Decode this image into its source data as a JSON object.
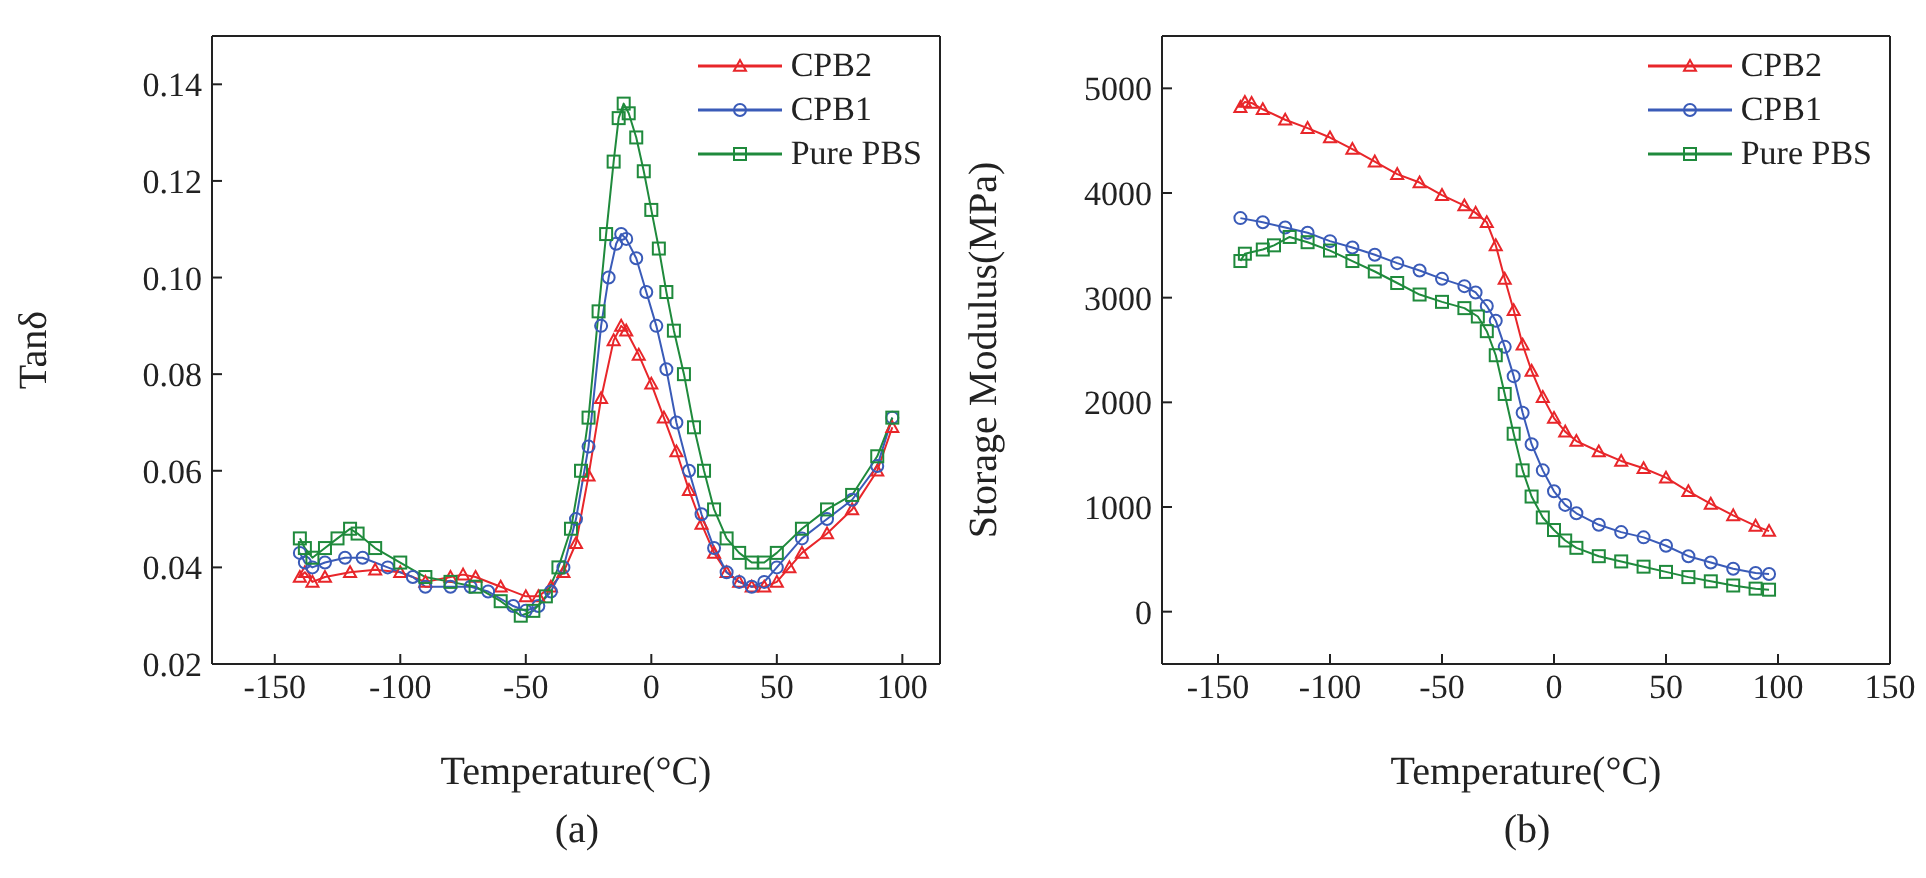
{
  "chart_data": [
    {
      "type": "line",
      "xlabel": "Temperature(°C)",
      "ylabel": "Tanδ",
      "annotations": [
        "(a)"
      ],
      "xlim": [
        -175,
        115
      ],
      "xticks": [
        -150,
        -100,
        -50,
        0,
        50,
        100
      ],
      "ylim": [
        0.02,
        0.15
      ],
      "yticks": [
        0.02,
        0.04,
        0.06,
        0.08,
        {
          "value": 0.1,
          "label": "0.10"
        },
        0.12,
        0.14
      ],
      "legend": "top right",
      "grid": false,
      "series": [
        {
          "name": "CPB2",
          "color": "#e8262a",
          "marker": "triangle",
          "x": [
            -140,
            -138,
            -135,
            -130,
            -120,
            -110,
            -100,
            -90,
            -80,
            -75,
            -70,
            -60,
            -50,
            -45,
            -40,
            -35,
            -30,
            -25,
            -20,
            -15,
            -12,
            -10,
            -5,
            0,
            5,
            10,
            15,
            20,
            25,
            30,
            35,
            40,
            45,
            50,
            55,
            60,
            70,
            80,
            90,
            96
          ],
          "values": [
            0.038,
            0.039,
            0.037,
            0.038,
            0.039,
            0.0395,
            0.039,
            0.037,
            0.038,
            0.0385,
            0.038,
            0.036,
            0.034,
            0.034,
            0.036,
            0.039,
            0.045,
            0.059,
            0.075,
            0.087,
            0.09,
            0.089,
            0.084,
            0.078,
            0.071,
            0.064,
            0.056,
            0.049,
            0.043,
            0.039,
            0.037,
            0.036,
            0.036,
            0.037,
            0.04,
            0.043,
            0.047,
            0.052,
            0.06,
            0.069
          ]
        },
        {
          "name": "CPB1",
          "color": "#3a5bb8",
          "marker": "circle",
          "x": [
            -140,
            -138,
            -135,
            -130,
            -122,
            -115,
            -105,
            -95,
            -90,
            -80,
            -72,
            -65,
            -55,
            -50,
            -45,
            -40,
            -35,
            -30,
            -25,
            -20,
            -17,
            -14,
            -12,
            -10,
            -6,
            -2,
            2,
            6,
            10,
            15,
            20,
            25,
            30,
            35,
            40,
            45,
            50,
            60,
            70,
            80,
            90,
            96
          ],
          "values": [
            0.043,
            0.041,
            0.04,
            0.041,
            0.042,
            0.042,
            0.04,
            0.038,
            0.036,
            0.036,
            0.036,
            0.035,
            0.032,
            0.031,
            0.032,
            0.035,
            0.04,
            0.05,
            0.065,
            0.09,
            0.1,
            0.107,
            0.109,
            0.108,
            0.104,
            0.097,
            0.09,
            0.081,
            0.07,
            0.06,
            0.051,
            0.044,
            0.039,
            0.037,
            0.036,
            0.037,
            0.04,
            0.046,
            0.05,
            0.054,
            0.061,
            0.071
          ]
        },
        {
          "name": "Pure PBS",
          "color": "#1f8a3c",
          "marker": "square",
          "x": [
            -140,
            -138,
            -135,
            -130,
            -125,
            -120,
            -117,
            -110,
            -100,
            -90,
            -80,
            -70,
            -60,
            -52,
            -47,
            -42,
            -37,
            -32,
            -28,
            -25,
            -21,
            -18,
            -15,
            -13,
            -11,
            -9,
            -6,
            -3,
            0,
            3,
            6,
            9,
            13,
            17,
            21,
            25,
            30,
            35,
            40,
            45,
            50,
            60,
            70,
            80,
            90,
            96
          ],
          "values": [
            0.046,
            0.044,
            0.042,
            0.044,
            0.046,
            0.048,
            0.047,
            0.044,
            0.041,
            0.038,
            0.037,
            0.036,
            0.033,
            0.03,
            0.031,
            0.034,
            0.04,
            0.048,
            0.06,
            0.071,
            0.093,
            0.109,
            0.124,
            0.133,
            0.136,
            0.134,
            0.129,
            0.122,
            0.114,
            0.106,
            0.097,
            0.089,
            0.08,
            0.069,
            0.06,
            0.052,
            0.046,
            0.043,
            0.041,
            0.041,
            0.043,
            0.048,
            0.052,
            0.055,
            0.063,
            0.071
          ]
        }
      ]
    },
    {
      "type": "line",
      "xlabel": "Temperature(°C)",
      "ylabel": "Storage Modulus(MPa)",
      "annotations": [
        "(b)"
      ],
      "xlim": [
        -175,
        150
      ],
      "xticks": [
        -150,
        -100,
        -50,
        0,
        50,
        100,
        150
      ],
      "ylim": [
        -500,
        5500
      ],
      "yticks": [
        0,
        1000,
        2000,
        3000,
        4000,
        5000
      ],
      "legend": "top right",
      "grid": false,
      "series": [
        {
          "name": "CPB2",
          "color": "#e8262a",
          "marker": "triangle",
          "x": [
            -140,
            -138,
            -135,
            -130,
            -120,
            -110,
            -100,
            -90,
            -80,
            -70,
            -60,
            -50,
            -40,
            -35,
            -30,
            -26,
            -22,
            -18,
            -14,
            -10,
            -5,
            0,
            5,
            10,
            20,
            30,
            40,
            50,
            60,
            70,
            80,
            90,
            96
          ],
          "values": [
            4820,
            4870,
            4860,
            4800,
            4700,
            4620,
            4530,
            4420,
            4300,
            4180,
            4100,
            3980,
            3880,
            3810,
            3720,
            3500,
            3180,
            2880,
            2550,
            2300,
            2050,
            1850,
            1720,
            1630,
            1530,
            1440,
            1370,
            1280,
            1150,
            1030,
            920,
            820,
            770
          ]
        },
        {
          "name": "CPB1",
          "color": "#3a5bb8",
          "marker": "circle",
          "x": [
            -140,
            -130,
            -120,
            -110,
            -100,
            -90,
            -80,
            -70,
            -60,
            -50,
            -40,
            -35,
            -30,
            -26,
            -22,
            -18,
            -14,
            -10,
            -5,
            0,
            5,
            10,
            20,
            30,
            40,
            50,
            60,
            70,
            80,
            90,
            96
          ],
          "values": [
            3760,
            3720,
            3670,
            3620,
            3540,
            3480,
            3410,
            3330,
            3260,
            3180,
            3110,
            3050,
            2920,
            2780,
            2530,
            2250,
            1900,
            1600,
            1350,
            1150,
            1020,
            940,
            830,
            760,
            710,
            630,
            530,
            470,
            410,
            370,
            360
          ]
        },
        {
          "name": "Pure PBS",
          "color": "#1f8a3c",
          "marker": "square",
          "x": [
            -140,
            -138,
            -130,
            -125,
            -118,
            -110,
            -100,
            -90,
            -80,
            -70,
            -60,
            -50,
            -40,
            -34,
            -30,
            -26,
            -22,
            -18,
            -14,
            -10,
            -5,
            0,
            5,
            10,
            20,
            30,
            40,
            50,
            60,
            70,
            80,
            90,
            96
          ],
          "values": [
            3350,
            3420,
            3460,
            3500,
            3580,
            3530,
            3450,
            3350,
            3250,
            3140,
            3030,
            2960,
            2900,
            2820,
            2680,
            2450,
            2080,
            1700,
            1350,
            1100,
            900,
            780,
            680,
            610,
            530,
            480,
            430,
            380,
            330,
            290,
            250,
            220,
            210
          ]
        }
      ]
    }
  ]
}
